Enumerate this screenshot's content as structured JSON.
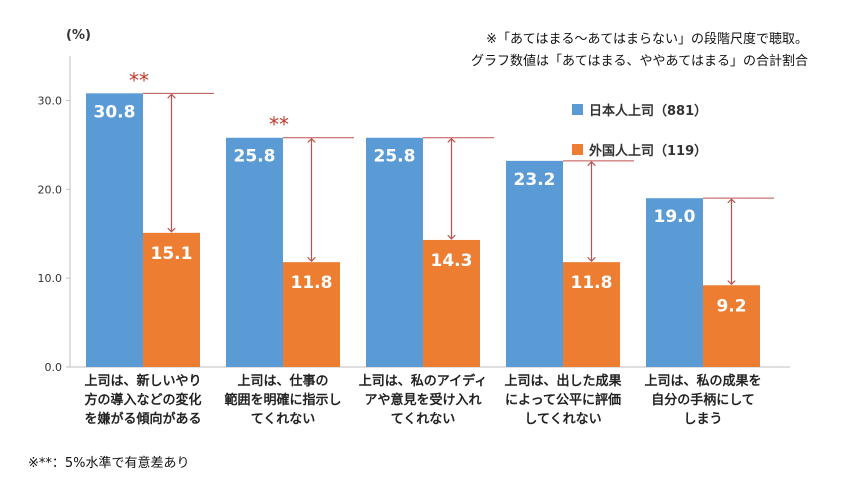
{
  "notes": {
    "line1": "※「あてはまる～あてはまらない」の段階尺度で聴取。",
    "line2": "グラフ数値は「あてはまる、ややあてはまる」の合計割合",
    "footnote": "※**：5%水準で有意差あり"
  },
  "chart_data": {
    "type": "bar",
    "ylabel": "(%)",
    "ylim": [
      0,
      35
    ],
    "yticks": [
      "0.0",
      "10.0",
      "20.0",
      "30.0"
    ],
    "categories": [
      [
        "上司は、新しいやり",
        "方の導入などの変化",
        "を嫌がる傾向がある"
      ],
      [
        "上司は、仕事の",
        "範囲を明確に指示し",
        "てくれない"
      ],
      [
        "上司は、私のアイディ",
        "アや意見を受け入れ",
        "てくれない"
      ],
      [
        "上司は、出した成果",
        "によって公平に評価",
        "してくれない"
      ],
      [
        "上司は、私の成果を",
        "自分の手柄にして",
        "しまう"
      ]
    ],
    "series": [
      {
        "name": "日本人上司（881）",
        "color": "#5b9bd5",
        "values": [
          30.8,
          25.8,
          25.8,
          23.2,
          19.0
        ]
      },
      {
        "name": "外国人上司（119）",
        "color": "#ed7d31",
        "values": [
          15.1,
          11.8,
          14.3,
          11.8,
          9.2
        ]
      }
    ],
    "value_labels": [
      [
        "30.8",
        "25.8",
        "25.8",
        "23.2",
        "19.0"
      ],
      [
        "15.1",
        "11.8",
        "14.3",
        "11.8",
        "9.2"
      ]
    ],
    "significance": [
      "**",
      "**",
      "",
      "",
      ""
    ],
    "significance_color": "#c0392b",
    "arrow_color": "#c0504d"
  }
}
